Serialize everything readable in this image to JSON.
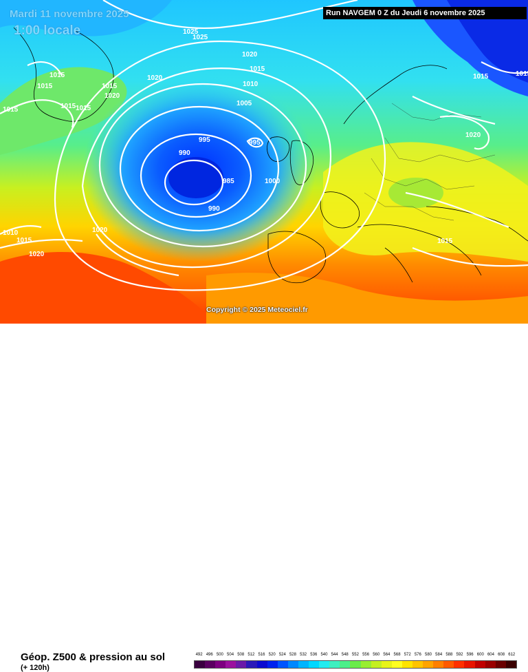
{
  "header": {
    "date": "Mardi 11 novembre 2025",
    "local_time": "1:00 locale",
    "run": "Run NAVGEM 0 Z du Jeudi 6 novembre 2025"
  },
  "copyright": "Copyright © 2025 Meteociel.fr",
  "footer": {
    "title": "Géop. Z500 & pression au sol",
    "lead": "(+ 120h)"
  },
  "scale": {
    "labels": [
      "492",
      "496",
      "500",
      "504",
      "508",
      "512",
      "516",
      "520",
      "524",
      "528",
      "532",
      "536",
      "540",
      "544",
      "548",
      "552",
      "556",
      "560",
      "564",
      "568",
      "572",
      "576",
      "580",
      "584",
      "588",
      "592",
      "596",
      "600",
      "604",
      "608",
      "612"
    ],
    "colors": [
      "#3a003f",
      "#5a0060",
      "#7d0080",
      "#9b109e",
      "#6a1aa8",
      "#2b1ab8",
      "#0b0bd0",
      "#0022ee",
      "#0055ff",
      "#0088ff",
      "#00b4ff",
      "#00d8ff",
      "#22ecf0",
      "#3ef0c0",
      "#4cf08a",
      "#6aec4a",
      "#98ee30",
      "#c4f020",
      "#e8f418",
      "#ffff20",
      "#ffe400",
      "#ffc400",
      "#ffa400",
      "#ff8000",
      "#ff5a00",
      "#ff3000",
      "#e81400",
      "#c00000",
      "#9a0000",
      "#6a0000",
      "#3a0000"
    ]
  },
  "isobars": [
    {
      "text": "1025"
    },
    {
      "text": "1025"
    },
    {
      "text": "1020"
    },
    {
      "text": "1015"
    },
    {
      "text": "1010"
    },
    {
      "text": "1005"
    },
    {
      "text": "1015"
    },
    {
      "text": "1015"
    },
    {
      "text": "1015"
    },
    {
      "text": "1020"
    },
    {
      "text": "1020"
    },
    {
      "text": "1015"
    },
    {
      "text": "1015"
    },
    {
      "text": "1015"
    },
    {
      "text": "995"
    },
    {
      "text": "995"
    },
    {
      "text": "990"
    },
    {
      "text": "985"
    },
    {
      "text": "990"
    },
    {
      "text": "1000"
    },
    {
      "text": "1015"
    },
    {
      "text": "1020"
    },
    {
      "text": "1015"
    },
    {
      "text": "1020"
    },
    {
      "text": "1015"
    },
    {
      "text": "1010"
    },
    {
      "text": "1015"
    },
    {
      "text": "1020"
    },
    {
      "text": "1015"
    }
  ]
}
